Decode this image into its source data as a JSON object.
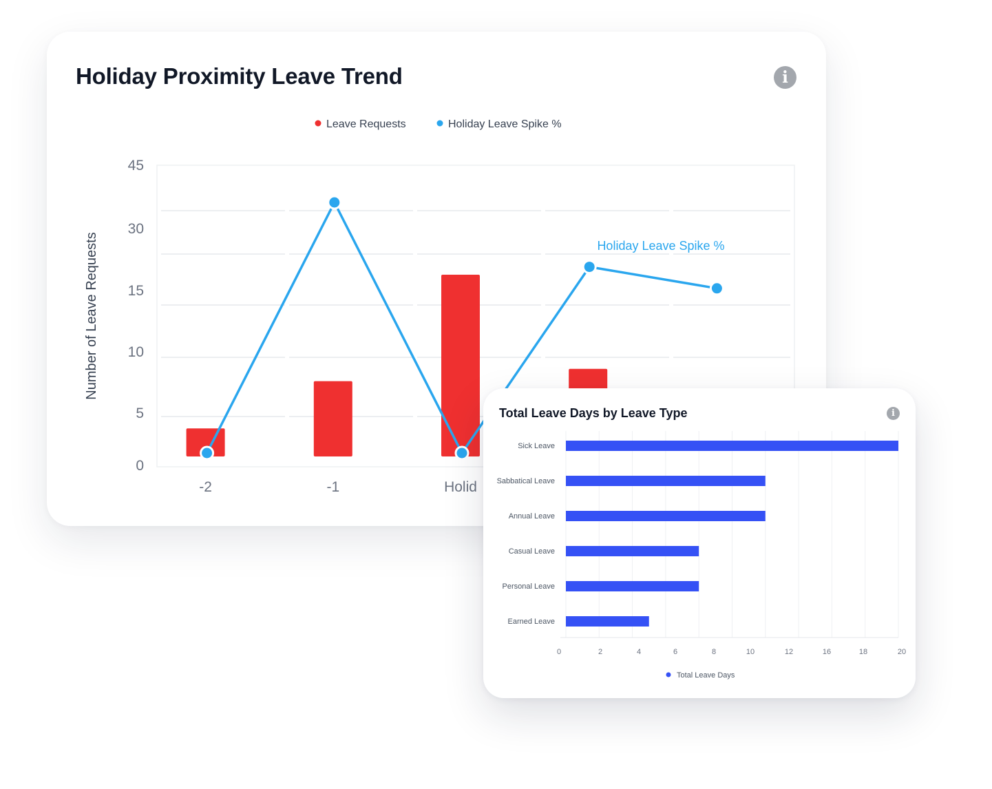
{
  "main_card": {
    "title": "Holiday Proximity Leave Trend",
    "info_icon": "info-icon",
    "info_glyph": "i",
    "legend": [
      {
        "label": "Leave Requests",
        "color": "#ef3030"
      },
      {
        "label": "Holiday Leave Spike %",
        "color": "#2aa6ee"
      }
    ],
    "line_annotation": "Holiday Leave Spike %"
  },
  "side_card": {
    "title": "Total Leave Days by Leave Type",
    "info_icon": "info-icon",
    "info_glyph": "i",
    "legend": [
      {
        "label": "Total Leave Days",
        "color": "#3551f5"
      }
    ]
  },
  "chart_data": [
    {
      "type": "bar",
      "title": "Holiday Proximity Leave Trend",
      "xlabel": "",
      "ylabel": "Number of Leave Requests",
      "categories": [
        "-2",
        "-1",
        "Holid",
        "",
        ""
      ],
      "y_ticks": [
        "0",
        "5",
        "10",
        "15",
        "30",
        "45"
      ],
      "series": [
        {
          "name": "Leave Requests",
          "type": "bar",
          "color": "#ef3030",
          "values": [
            4,
            8,
            20,
            9,
            7
          ]
        },
        {
          "name": "Holiday Leave Spike %",
          "type": "line",
          "color": "#2aa6ee",
          "values": [
            0,
            35,
            0,
            26,
            23
          ]
        }
      ],
      "grid": true,
      "legend_position": "top-center"
    },
    {
      "type": "bar",
      "orientation": "horizontal",
      "title": "Total Leave Days by Leave Type",
      "categories": [
        "Sick Leave",
        "Sabbatical Leave",
        "Annual Leave",
        "Casual Leave",
        "Personal Leave",
        "Earned Leave"
      ],
      "x_ticks": [
        "0",
        "2",
        "4",
        "6",
        "8",
        "10",
        "12",
        "16",
        "18",
        "20"
      ],
      "series": [
        {
          "name": "Total Leave Days",
          "color": "#3551f5",
          "values": [
            20,
            12,
            12,
            8,
            8,
            5
          ]
        }
      ],
      "grid": true,
      "legend_position": "bottom-center"
    }
  ]
}
